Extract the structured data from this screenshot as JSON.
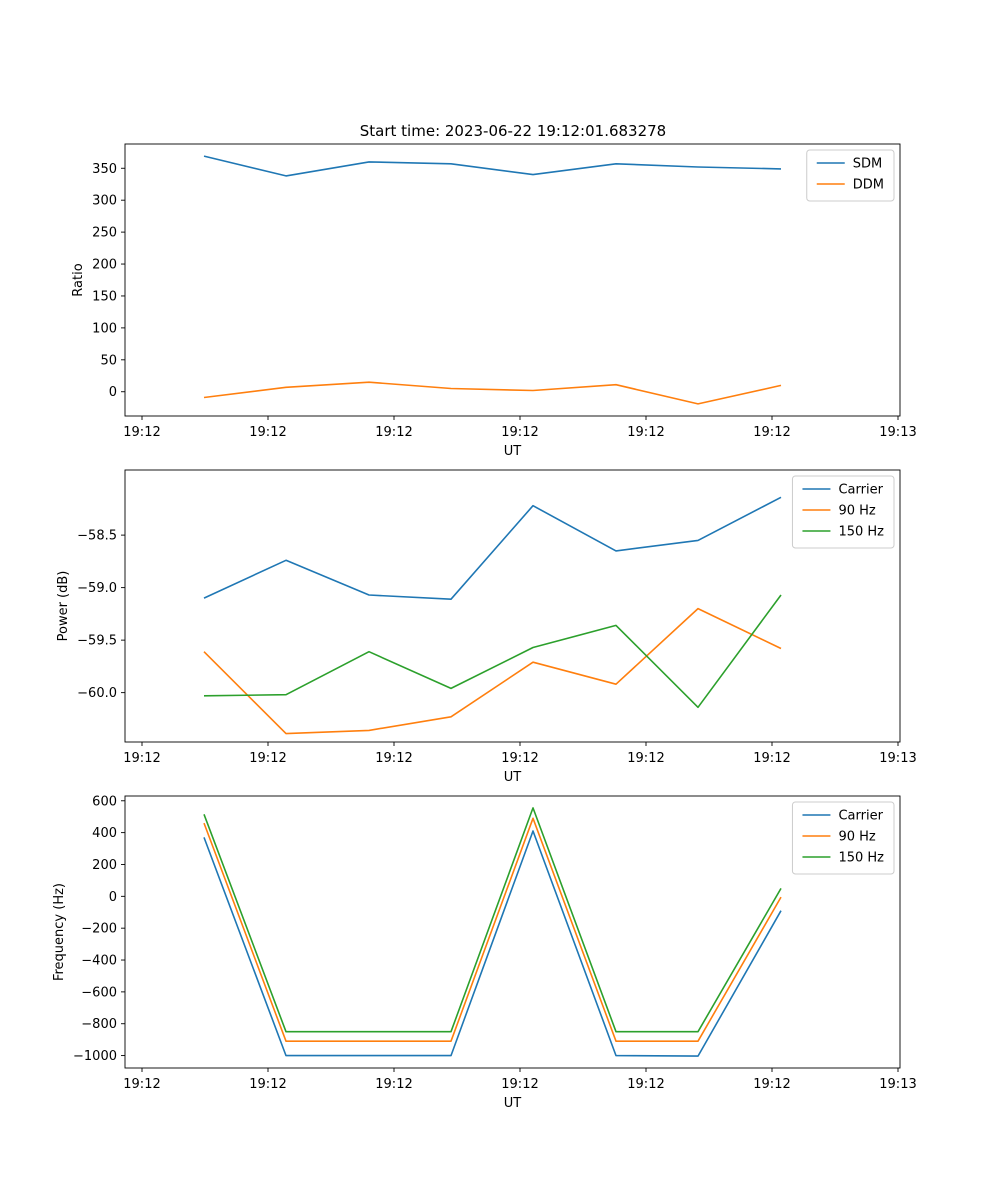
{
  "figure_title": "Start time: 2023-06-22 19:12:01.683278",
  "colors": {
    "blue": "#1f77b4",
    "orange": "#ff7f0e",
    "green": "#2ca02c"
  },
  "chart_data": [
    {
      "type": "line",
      "xlabel": "UT",
      "ylabel": "Ratio",
      "x_tick_labels": [
        "19:12",
        "19:12",
        "19:12",
        "19:12",
        "19:12",
        "19:12",
        "19:13"
      ],
      "ylim": [
        -38,
        388
      ],
      "yticks": [
        0,
        50,
        100,
        150,
        200,
        250,
        300,
        350
      ],
      "ytick_labels": [
        "0",
        "50",
        "100",
        "150",
        "200",
        "250",
        "300",
        "350"
      ],
      "legend_position": "top-right",
      "series": [
        {
          "name": "SDM",
          "color": "#1f77b4",
          "values": [
            369,
            338,
            360,
            357,
            340,
            357,
            352,
            349
          ]
        },
        {
          "name": "DDM",
          "color": "#ff7f0e",
          "values": [
            -9,
            7,
            15,
            5,
            2,
            11,
            -19,
            10
          ]
        }
      ]
    },
    {
      "type": "line",
      "xlabel": "UT",
      "ylabel": "Power (dB)",
      "x_tick_labels": [
        "19:12",
        "19:12",
        "19:12",
        "19:12",
        "19:12",
        "19:12",
        "19:13"
      ],
      "ylim": [
        -60.47,
        -57.88
      ],
      "yticks": [
        -60.0,
        -59.5,
        -59.0,
        -58.5
      ],
      "ytick_labels": [
        "−60.0",
        "−59.5",
        "−59.0",
        "−58.5"
      ],
      "legend_position": "top-right",
      "series": [
        {
          "name": "Carrier",
          "color": "#1f77b4",
          "values": [
            -59.1,
            -58.74,
            -59.07,
            -59.11,
            -58.22,
            -58.65,
            -58.55,
            -58.14
          ]
        },
        {
          "name": "90 Hz",
          "color": "#ff7f0e",
          "values": [
            -59.61,
            -60.39,
            -60.36,
            -60.23,
            -59.71,
            -59.92,
            -59.2,
            -59.58
          ]
        },
        {
          "name": "150 Hz",
          "color": "#2ca02c",
          "values": [
            -60.03,
            -60.02,
            -59.61,
            -59.96,
            -59.57,
            -59.36,
            -60.14,
            -59.07
          ]
        }
      ]
    },
    {
      "type": "line",
      "xlabel": "UT",
      "ylabel": "Frequency (Hz)",
      "x_tick_labels": [
        "19:12",
        "19:12",
        "19:12",
        "19:12",
        "19:12",
        "19:12",
        "19:13"
      ],
      "ylim": [
        -1078,
        630
      ],
      "yticks": [
        -1000,
        -800,
        -600,
        -400,
        -200,
        0,
        200,
        400,
        600
      ],
      "ytick_labels": [
        "−1000",
        "−800",
        "−600",
        "−400",
        "−200",
        "0",
        "200",
        "400",
        "600"
      ],
      "legend_position": "top-right",
      "series": [
        {
          "name": "Carrier",
          "color": "#1f77b4",
          "values": [
            370,
            -1000,
            -1000,
            -1000,
            410,
            -1000,
            -1003,
            -90
          ]
        },
        {
          "name": "90 Hz",
          "color": "#ff7f0e",
          "values": [
            460,
            -910,
            -910,
            -910,
            490,
            -910,
            -910,
            -5
          ]
        },
        {
          "name": "150 Hz",
          "color": "#2ca02c",
          "values": [
            515,
            -850,
            -850,
            -850,
            555,
            -850,
            -850,
            50
          ]
        }
      ]
    }
  ]
}
